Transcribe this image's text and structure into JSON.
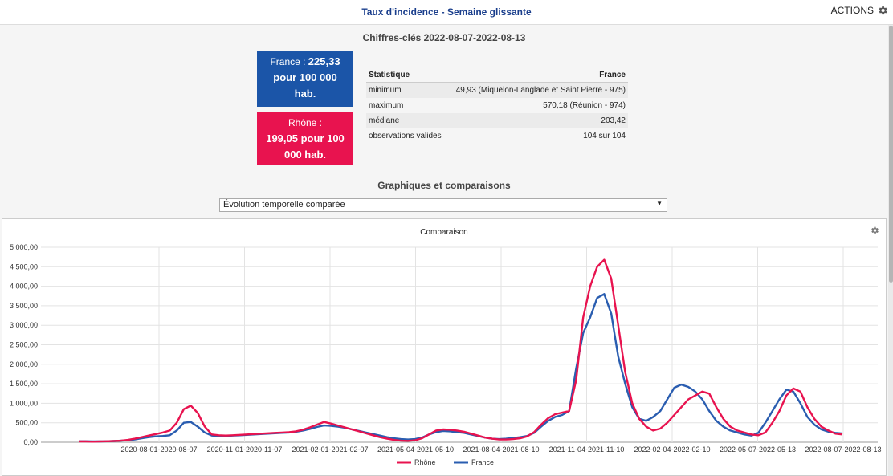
{
  "header": {
    "title": "Taux d'incidence - Semaine glissante",
    "actions_label": "ACTIONS",
    "actions_icon": "gear-icon"
  },
  "key_figures": {
    "title": "Chiffres-clés 2022-08-07-2022-08-13",
    "france_card": {
      "prefix": "France : ",
      "value": "225,33",
      "unit": "pour 100 000 hab.",
      "color": "#1b55a8"
    },
    "rhone_card": {
      "prefix": "Rhône : ",
      "value": "199,05 pour 100 000 hab.",
      "color": "#e8134f"
    },
    "table": {
      "headers": [
        "Statistique",
        "France"
      ],
      "rows": [
        [
          "minimum",
          "49,93 (Miquelon-Langlade et Saint Pierre - 975)"
        ],
        [
          "maximum",
          "570,18 (Réunion - 974)"
        ],
        [
          "médiane",
          "203,42"
        ],
        [
          "observations valides",
          "104 sur 104"
        ]
      ]
    }
  },
  "graphs": {
    "title": "Graphiques et comparaisons",
    "select_value": "Évolution temporelle comparée"
  },
  "chart_data": {
    "type": "line",
    "title": "Comparaison",
    "ylim": [
      0,
      5000
    ],
    "y_ticks": [
      "0,00",
      "500,00",
      "1 000,00",
      "1 500,00",
      "2 000,00",
      "2 500,00",
      "3 000,00",
      "3 500,00",
      "4 000,00",
      "4 500,00",
      "5 000,00"
    ],
    "x_ticks": [
      "2020-08-01-2020-08-07",
      "2020-11-01-2020-11-07",
      "2021-02-01-2021-02-07",
      "2021-05-04-2021-05-10",
      "2021-08-04-2021-08-10",
      "2021-11-04-2021-11-10",
      "2022-02-04-2022-02-10",
      "2022-05-07-2022-05-13",
      "2022-08-07-2022-08-13"
    ],
    "grid": true,
    "legend_position": "bottom",
    "series": [
      {
        "name": "Rhône",
        "color": "#e8134f",
        "values": [
          20,
          20,
          15,
          20,
          25,
          30,
          40,
          60,
          90,
          130,
          170,
          210,
          250,
          300,
          500,
          850,
          940,
          750,
          400,
          200,
          180,
          170,
          180,
          190,
          200,
          210,
          220,
          230,
          240,
          250,
          260,
          280,
          320,
          380,
          450,
          520,
          480,
          430,
          380,
          330,
          280,
          230,
          180,
          130,
          90,
          60,
          40,
          35,
          50,
          100,
          200,
          300,
          330,
          320,
          300,
          270,
          220,
          170,
          120,
          90,
          70,
          70,
          80,
          100,
          150,
          260,
          450,
          620,
          720,
          760,
          800,
          1600,
          3200,
          4000,
          4500,
          4680,
          4200,
          3000,
          1800,
          1000,
          600,
          400,
          300,
          350,
          500,
          700,
          900,
          1100,
          1200,
          1300,
          1250,
          900,
          600,
          400,
          300,
          250,
          200,
          180,
          250,
          500,
          800,
          1200,
          1380,
          1300,
          900,
          600,
          400,
          300,
          220,
          199
        ]
      },
      {
        "name": "France",
        "color": "#2a5db0",
        "values": [
          25,
          25,
          20,
          20,
          25,
          30,
          40,
          50,
          70,
          100,
          130,
          150,
          160,
          180,
          300,
          500,
          520,
          400,
          250,
          170,
          160,
          160,
          170,
          180,
          190,
          200,
          210,
          220,
          230,
          240,
          250,
          270,
          300,
          340,
          390,
          430,
          420,
          400,
          370,
          330,
          290,
          250,
          210,
          170,
          130,
          100,
          80,
          70,
          80,
          120,
          200,
          260,
          290,
          280,
          260,
          240,
          200,
          160,
          120,
          90,
          80,
          90,
          110,
          130,
          160,
          240,
          400,
          550,
          650,
          700,
          800,
          1900,
          2800,
          3200,
          3700,
          3800,
          3300,
          2200,
          1500,
          900,
          600,
          550,
          650,
          800,
          1100,
          1400,
          1480,
          1420,
          1300,
          1100,
          800,
          550,
          400,
          300,
          250,
          200,
          170,
          240,
          500,
          800,
          1100,
          1350,
          1300,
          1000,
          650,
          450,
          330,
          270,
          240,
          225
        ]
      }
    ]
  }
}
